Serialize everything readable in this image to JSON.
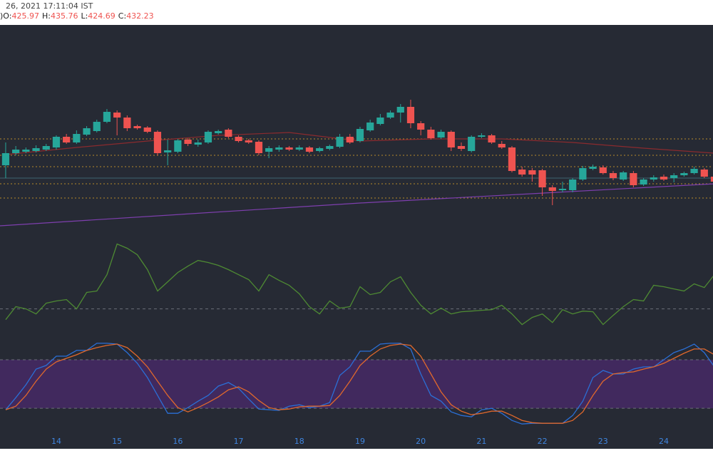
{
  "header": {
    "date_text": "26, 2021 17:11:04 IST",
    "prefix": ")",
    "ohlc": [
      {
        "label": "O:",
        "value": 425.97
      },
      {
        "label": "H:",
        "value": 435.76
      },
      {
        "label": "L:",
        "value": 424.69
      },
      {
        "label": "C:",
        "value": 432.23
      }
    ]
  },
  "chart_data": [
    {
      "type": "candlestick",
      "up_color": "#26a69a",
      "down_color": "#ef5350",
      "xlim": [
        -0.56,
        69.86
      ],
      "ylim": [
        387.5,
        535
      ],
      "xticks": [
        {
          "value": 5,
          "label": "14"
        },
        {
          "value": 11,
          "label": "15"
        },
        {
          "value": 17,
          "label": "16"
        },
        {
          "value": 23,
          "label": "17"
        },
        {
          "value": 29,
          "label": "18"
        },
        {
          "value": 35,
          "label": "19"
        },
        {
          "value": 41,
          "label": "20"
        },
        {
          "value": 47,
          "label": "21"
        },
        {
          "value": 53,
          "label": "22"
        },
        {
          "value": 59,
          "label": "23"
        },
        {
          "value": 65,
          "label": "24"
        }
      ],
      "open": [
        436.5,
        445,
        446,
        446.5,
        447.5,
        449,
        456.5,
        452.5,
        458,
        460.5,
        467,
        473.5,
        470,
        464,
        463,
        460,
        445.5,
        446,
        454.5,
        451,
        452.5,
        459,
        461.5,
        456.5,
        454,
        453,
        446,
        447.5,
        449,
        447.5,
        449,
        446.5,
        448,
        449.5,
        456.5,
        453.5,
        461,
        465.5,
        470,
        473.5,
        477.5,
        466,
        461.5,
        456,
        460,
        450,
        446.5,
        456.5,
        457.5,
        451.5,
        449,
        433.5,
        433,
        433,
        421,
        419,
        419,
        426.5,
        434,
        435,
        431,
        426.5,
        431,
        423,
        426.5,
        428.5,
        427.5,
        429.5,
        431,
        433.5,
        428.5
      ],
      "high": [
        452.5,
        450,
        449,
        450.5,
        451.5,
        457.5,
        458.5,
        461,
        464,
        468.5,
        476,
        475,
        471.5,
        465,
        464,
        461,
        454.5,
        455,
        455.5,
        454.5,
        461,
        461.5,
        462.5,
        457.5,
        455,
        454,
        450,
        450.5,
        450,
        450.5,
        450,
        449.5,
        451,
        458.5,
        458.5,
        463.5,
        468.5,
        472.5,
        475,
        479.5,
        482.5,
        467.5,
        463.5,
        461.5,
        461,
        452.5,
        457.5,
        459,
        458.5,
        453.5,
        450,
        435.5,
        434.5,
        434,
        422.5,
        425,
        427.5,
        436,
        437,
        436.5,
        432.5,
        432.5,
        432.5,
        427.5,
        429.5,
        430,
        431,
        432,
        435.5,
        434.5,
        430
      ],
      "low": [
        427.5,
        443.5,
        445,
        445.5,
        446.5,
        447.5,
        451.5,
        451.5,
        457,
        459.5,
        466,
        457.5,
        460.5,
        461.5,
        459,
        443.5,
        436.5,
        445,
        450,
        449.5,
        451.5,
        458,
        455.5,
        452.5,
        451.5,
        443.5,
        441.5,
        446,
        446.5,
        446.5,
        445,
        445.5,
        447,
        448.5,
        451.5,
        452.5,
        460,
        464.5,
        469,
        466.5,
        462.5,
        457.5,
        454.5,
        455,
        446.5,
        446.5,
        445.5,
        455.5,
        451.5,
        448,
        431.5,
        428.5,
        425,
        415,
        408.5,
        417.5,
        417.5,
        425.5,
        433,
        430,
        426,
        425.5,
        421,
        422,
        425,
        425.5,
        424.5,
        428.5,
        430,
        427.5,
        423.5
      ],
      "close": [
        445,
        447.5,
        447.5,
        448.5,
        450,
        456.5,
        452.5,
        458.5,
        462.5,
        467,
        474,
        470,
        462.5,
        462.5,
        460,
        445,
        447,
        454,
        451.5,
        452.5,
        460,
        460.5,
        456.5,
        453.5,
        452.5,
        445,
        448.5,
        449,
        447.5,
        449,
        446,
        448.5,
        450,
        456.5,
        452.5,
        462,
        466.5,
        470,
        473.5,
        477.5,
        466,
        461.5,
        455.5,
        460,
        449,
        448,
        456.5,
        457.5,
        452.5,
        449,
        432.5,
        430,
        430,
        421,
        418.5,
        420,
        426.5,
        434.5,
        435.5,
        431,
        427.5,
        431.5,
        422.5,
        426.5,
        428,
        426.5,
        429.5,
        431,
        434,
        428.5,
        425
      ],
      "overlays": [
        {
          "color": "#8b2a2e",
          "x": [
            0,
            7,
            14,
            21,
            28,
            35,
            42,
            49,
            56,
            63,
            70
          ],
          "values": [
            444,
            449,
            453.5,
            457.5,
            459.5,
            453.5,
            455,
            455,
            452.5,
            448.5,
            445
          ]
        },
        {
          "color": "#7e3fae",
          "x": [
            -0.56,
            35,
            70
          ],
          "values": [
            394,
            410,
            423.5
          ]
        }
      ],
      "levels": [
        {
          "value": 455,
          "color": "#b58a2a"
        },
        {
          "value": 443.5,
          "color": "#b58a2a"
        },
        {
          "value": 435.5,
          "color": "#b58a2a"
        },
        {
          "value": 423.5,
          "color": "#b58a2a"
        },
        {
          "value": 413.5,
          "color": "#b58a2a"
        },
        {
          "value": 427.5,
          "color": "#3f6470"
        }
      ]
    },
    {
      "type": "line",
      "ylim": [
        10,
        87
      ],
      "levels": [
        30
      ],
      "series": [
        {
          "color": "#4e8a33",
          "values": [
            21.7,
            31.7,
            30,
            26.1,
            34.4,
            36.1,
            37.2,
            30,
            42.7,
            43.8,
            56.4,
            80.1,
            76.8,
            71.8,
            60.3,
            43.8,
            50.9,
            58.1,
            63,
            67.4,
            65.8,
            63.6,
            60.3,
            56.4,
            52.6,
            43.8,
            56.4,
            52,
            48.2,
            41.6,
            31.7,
            26.1,
            36.1,
            30.6,
            31.7,
            47.1,
            41,
            42.7,
            50.9,
            54.8,
            42.7,
            32.8,
            26.1,
            30.6,
            26.1,
            27.8,
            28.3,
            28.9,
            29.4,
            32.8,
            26.1,
            17.9,
            23.4,
            26.1,
            19.5,
            29.4,
            26.1,
            28.3,
            27.8,
            17.9,
            25,
            31.7,
            37.2,
            36.1,
            48.2,
            47.1,
            45.4,
            43.8,
            49.3,
            46.5,
            56.4
          ]
        }
      ]
    },
    {
      "type": "line",
      "ylim": [
        -30,
        102
      ],
      "levels": [
        20,
        80
      ],
      "band": {
        "range": [
          20,
          80
        ],
        "color": "#41295e"
      },
      "series": [
        {
          "color": "#2b6fd6",
          "values": [
            18.2,
            33.2,
            49.1,
            68.5,
            73,
            84.4,
            84.4,
            91.5,
            91.5,
            100.3,
            100.3,
            99.4,
            88.8,
            75.6,
            58,
            35.9,
            13.8,
            13.8,
            20.9,
            28.8,
            35.9,
            47.4,
            51.8,
            44.7,
            31.5,
            19.1,
            18.2,
            17.4,
            22.6,
            24.4,
            20.9,
            22.6,
            27.1,
            60.6,
            71.2,
            90.6,
            90.6,
            99.4,
            100.3,
            100.3,
            93.3,
            62.4,
            35.9,
            28.8,
            15.6,
            11.2,
            9.4,
            18.2,
            20,
            13.8,
            5,
            0.6,
            1.5,
            1.5,
            1.5,
            1.5,
            11.2,
            28.8,
            58,
            66.8,
            62.4,
            62.4,
            68.5,
            71.2,
            71.2,
            80,
            88.8,
            93.3,
            99.4,
            88.8,
            71.2
          ]
        },
        {
          "color": "#e0682c",
          "values": [
            18.2,
            22.6,
            35.9,
            53.5,
            68.5,
            77.4,
            81.8,
            86.2,
            91.5,
            95,
            97.7,
            99.4,
            95,
            84.4,
            71.2,
            53.5,
            35.9,
            20.9,
            15.6,
            20.9,
            27.1,
            34.1,
            42.9,
            46.5,
            40.3,
            29.7,
            20.9,
            18.2,
            19.1,
            21.8,
            22.6,
            22.6,
            23.5,
            35.9,
            53.5,
            73,
            84.4,
            93.3,
            97.7,
            99.4,
            97.7,
            84.4,
            62.4,
            40.3,
            24.4,
            16.5,
            12.1,
            13.8,
            16.5,
            16.5,
            11.2,
            5,
            2.3,
            1.5,
            1.5,
            1.5,
            5,
            15.6,
            35.9,
            53.5,
            62.4,
            64.1,
            65,
            68.5,
            71.2,
            75.6,
            81.8,
            88,
            93.3,
            93.3,
            86.2
          ]
        }
      ]
    }
  ]
}
